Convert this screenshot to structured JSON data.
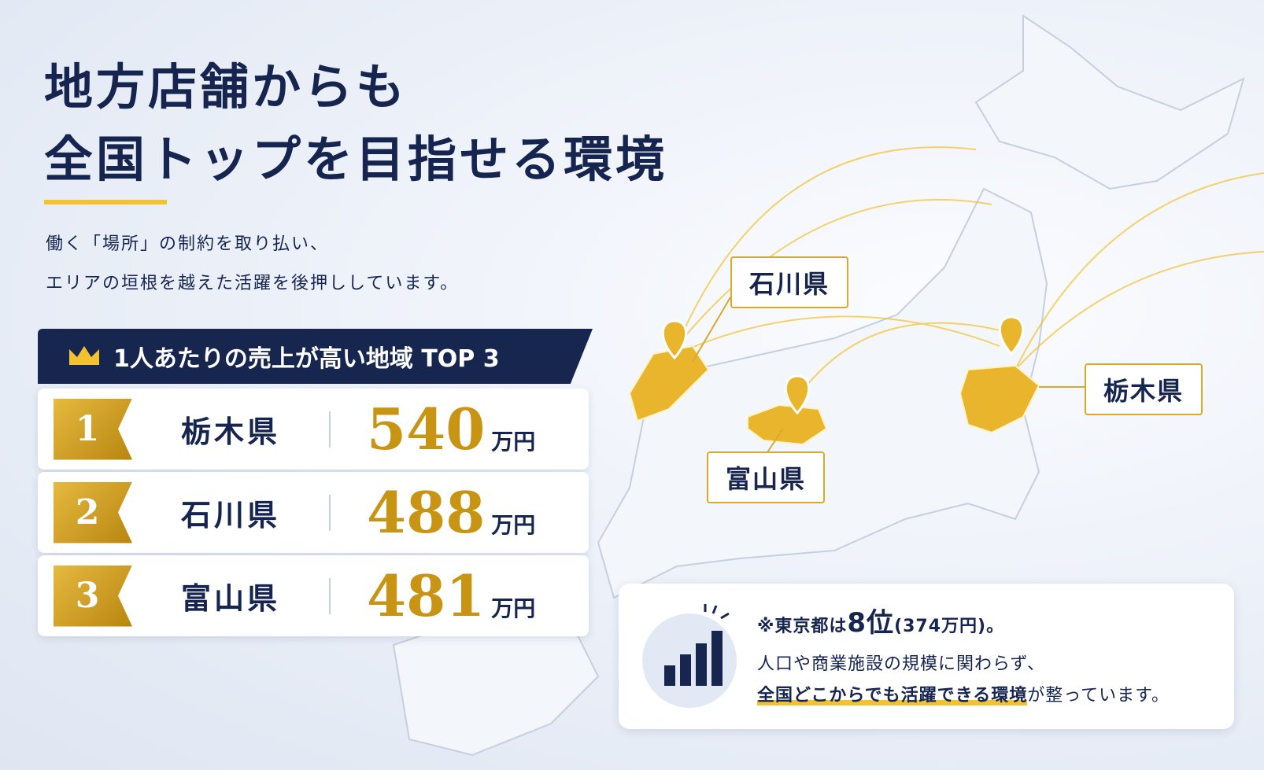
{
  "header": {
    "title_lines": [
      "地方店舗からも",
      "全国トップを目指せる環境"
    ],
    "subtitle_lines": [
      "働く「場所」の制約を取り払い、",
      "エリアの垣根を越えた活躍を後押ししています。"
    ]
  },
  "ranking": {
    "title": "1人あたりの売上が高い地域 TOP 3",
    "rows": [
      {
        "rank": 1,
        "region": "栃木県",
        "value": 540,
        "unit": "万円"
      },
      {
        "rank": 2,
        "region": "石川県",
        "value": 488,
        "unit": "万円"
      },
      {
        "rank": 3,
        "region": "富山県",
        "value": 481,
        "unit": "万円"
      }
    ]
  },
  "map": {
    "labels": [
      "石川県",
      "栃木県",
      "富山県"
    ]
  },
  "note": {
    "line1": [
      "※東京都は",
      "8位",
      "(374万円)。"
    ],
    "line2": "人口や商業施設の規模に関わらず、",
    "line3": [
      "全国どこからでも活躍できる環境",
      "が整っています。"
    ]
  }
}
